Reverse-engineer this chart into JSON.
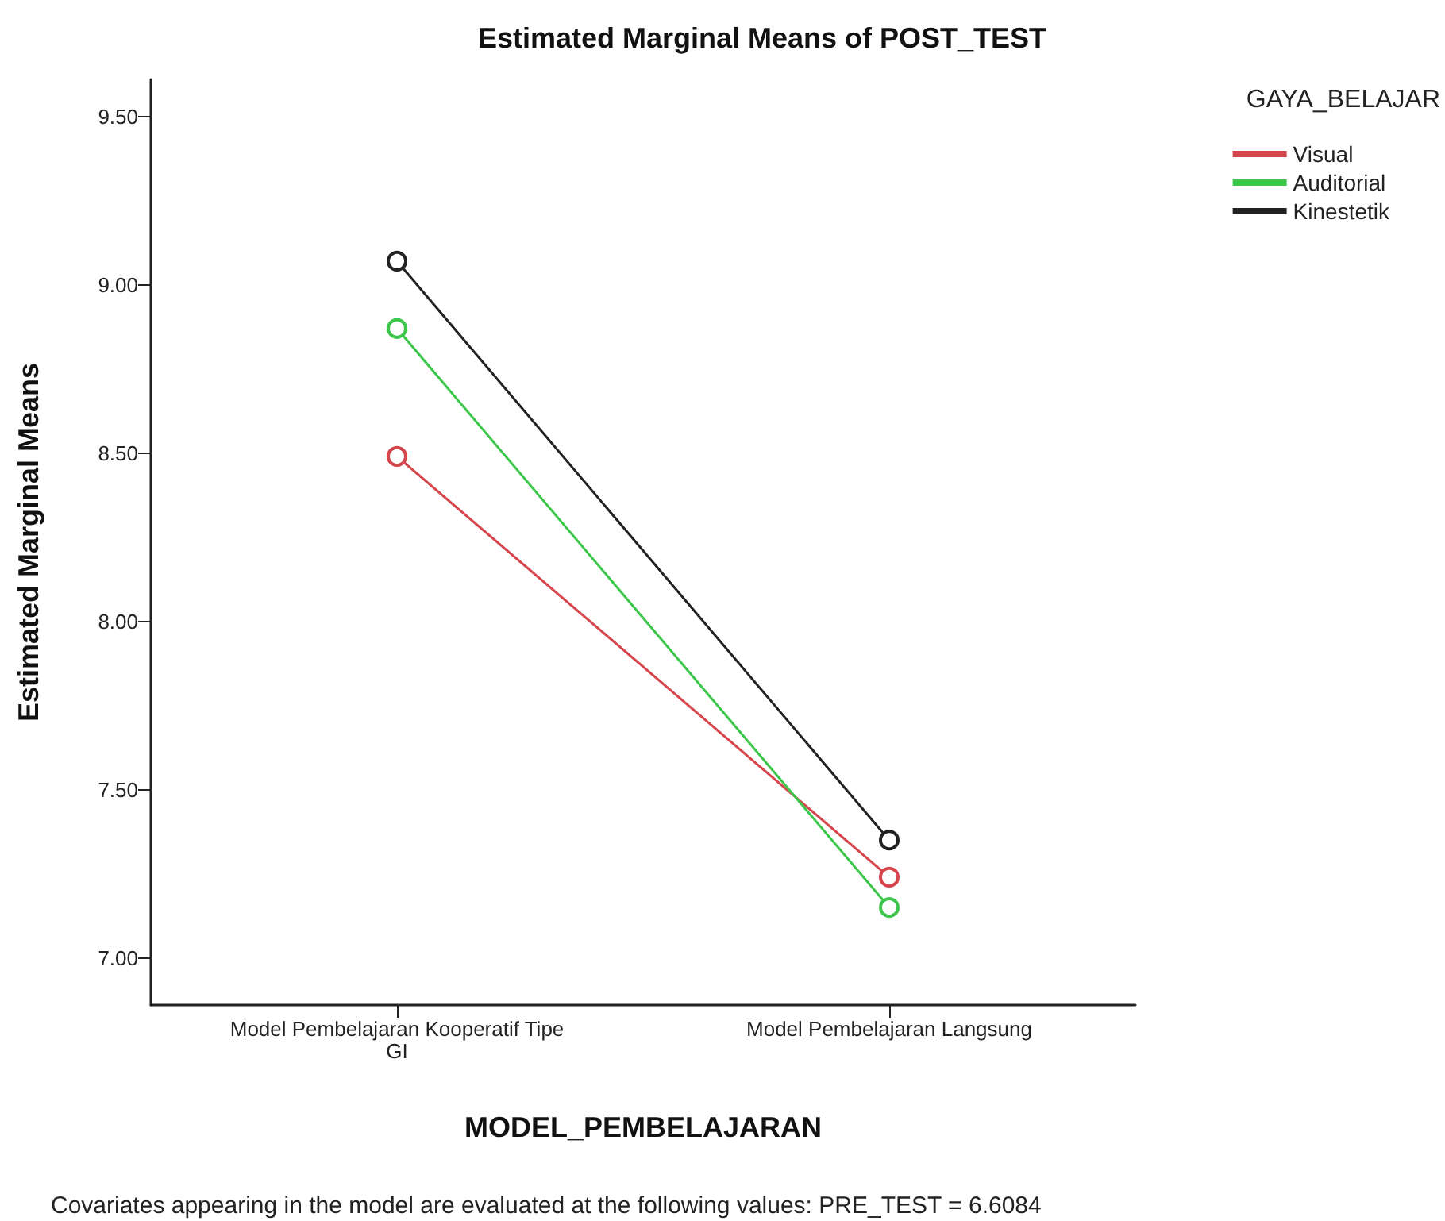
{
  "chart_data": {
    "type": "line",
    "title": "Estimated Marginal Means of POST_TEST",
    "xlabel": "MODEL_PEMBELAJARAN",
    "ylabel": "Estimated Marginal Means",
    "legend_title": "GAYA_BELAJAR",
    "categories": [
      "Model Pembelajaran Kooperatif Tipe GI",
      "Model Pembelajaran Langsung"
    ],
    "series": [
      {
        "name": "Visual",
        "color": "#d6454b",
        "values": [
          8.49,
          7.24
        ]
      },
      {
        "name": "Auditorial",
        "color": "#3cc74a",
        "values": [
          8.87,
          7.15
        ]
      },
      {
        "name": "Kinestetik",
        "color": "#222222",
        "values": [
          9.07,
          7.35
        ]
      }
    ],
    "ylim": [
      6.86,
      9.61
    ],
    "yticks": [
      {
        "value": 7,
        "label": "7.00"
      },
      {
        "value": 7.5,
        "label": "7.50"
      },
      {
        "value": 8,
        "label": "8.00"
      },
      {
        "value": 8.5,
        "label": "8.50"
      },
      {
        "value": 9,
        "label": "9.00"
      },
      {
        "value": 9.5,
        "label": "9.50"
      }
    ],
    "annotations": [
      "Covariates appearing in the model are evaluated at the following values: PRE_TEST = 6.6084"
    ],
    "grid": false,
    "legend": "top right",
    "marker": "circle",
    "line_style": "solid"
  }
}
